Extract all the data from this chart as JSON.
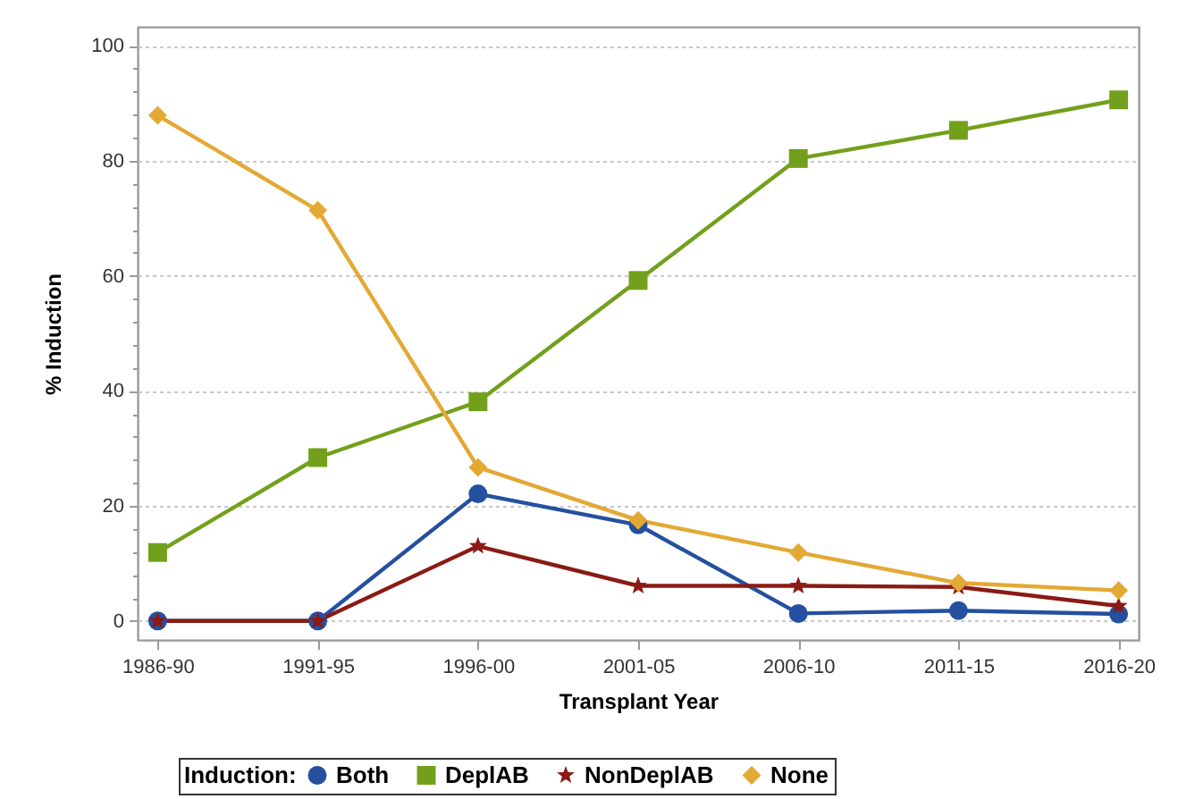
{
  "chart_data": {
    "type": "line",
    "xlabel": "Transplant Year",
    "ylabel": "% Induction",
    "legend_title": "Induction:",
    "legend": "bottom",
    "grid": "y",
    "categories": [
      "1986-90",
      "1991-95",
      "1996-00",
      "2001-05",
      "2006-10",
      "2011-15",
      "2016-20"
    ],
    "ylim": [
      -3.3,
      103.3
    ],
    "yticks": [
      0,
      {
        "value": 4,
        "label": null
      },
      {
        "value": 8,
        "label": null
      },
      {
        "value": 12,
        "label": null
      },
      {
        "value": 16,
        "label": null
      },
      20,
      {
        "value": 24,
        "label": null
      },
      {
        "value": 28,
        "label": null
      },
      {
        "value": 32,
        "label": null
      },
      {
        "value": 36,
        "label": null
      },
      40,
      {
        "value": 44,
        "label": null
      },
      {
        "value": 48,
        "label": null
      },
      {
        "value": 52,
        "label": null
      },
      {
        "value": 56,
        "label": null
      },
      60,
      {
        "value": 64,
        "label": null
      },
      {
        "value": 68,
        "label": null
      },
      {
        "value": 72,
        "label": null
      },
      {
        "value": 76,
        "label": null
      },
      80,
      {
        "value": 84,
        "label": null
      },
      {
        "value": 88,
        "label": null
      },
      {
        "value": 92,
        "label": null
      },
      {
        "value": 96,
        "label": null
      },
      100
    ],
    "series": [
      {
        "name": "Both",
        "color": "#24509f",
        "marker": "circle",
        "values": [
          0,
          0,
          22.1,
          16.7,
          1.3,
          1.8,
          1.2
        ]
      },
      {
        "name": "DeplAB",
        "color": "#73a01c",
        "marker": "square",
        "values": [
          11.9,
          28.4,
          38.1,
          59.2,
          80.4,
          85.3,
          90.6
        ]
      },
      {
        "name": "NonDeplAB",
        "color": "#8b1a14",
        "marker": "star",
        "values": [
          0,
          0,
          13,
          6.1,
          6.1,
          5.9,
          2.6
        ]
      },
      {
        "name": "None",
        "color": "#e3a934",
        "marker": "diamond",
        "values": [
          87.9,
          71.4,
          26.7,
          17.5,
          11.9,
          6.6,
          5.3
        ]
      }
    ]
  }
}
